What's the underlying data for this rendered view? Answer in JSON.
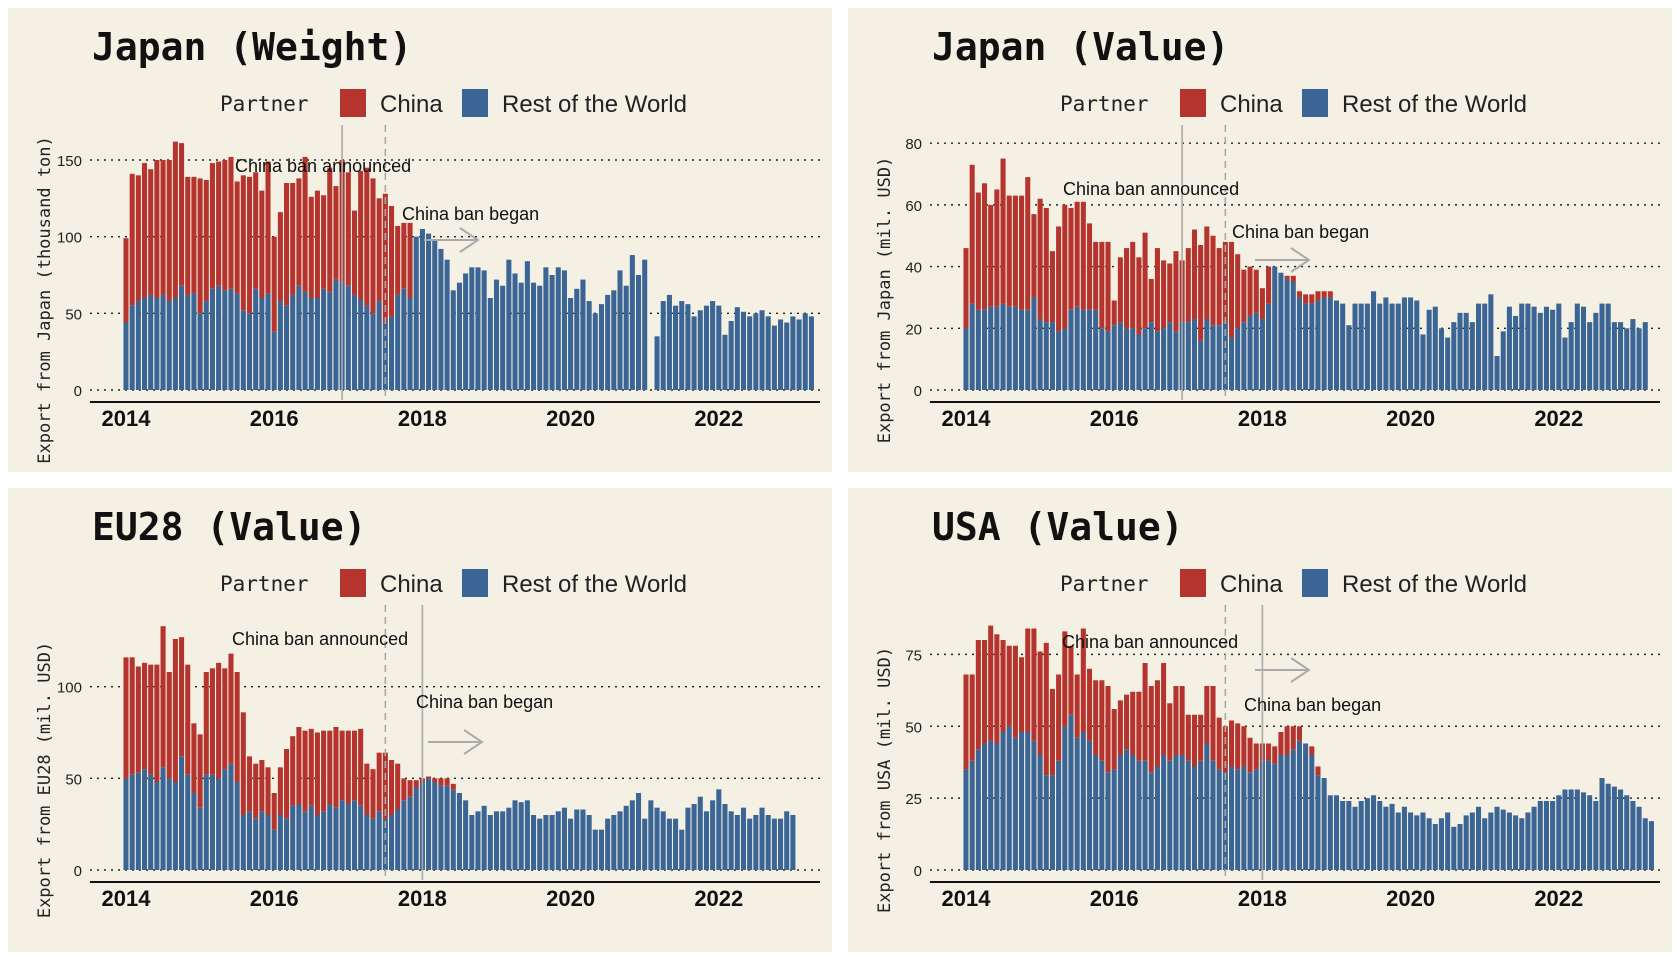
{
  "legend": {
    "title": "Partner",
    "items": [
      {
        "label": "China",
        "color": "#b5352e"
      },
      {
        "label": "Rest of the World",
        "color": "#3a6595"
      }
    ]
  },
  "colors": {
    "panel_background": "#f4f0e4",
    "china": "#b5352e",
    "rest_of_world": "#3a6595",
    "annotation": "#aaaaaa"
  },
  "chart_data": [
    {
      "type": "bar",
      "stacked": true,
      "title": "Japan (Weight)",
      "xlabel": "",
      "ylabel": "Export from Japan (thousand ton)",
      "x_ticks": [
        "2014",
        "2016",
        "2018",
        "2020",
        "2022"
      ],
      "y_ticks": [
        0,
        50,
        100,
        150
      ],
      "ylim": [
        0,
        165
      ],
      "grid": "horizontal-dotted",
      "legend_position": "top",
      "start": "2014-01",
      "annotations": [
        {
          "label": "China ban announced",
          "date": "2016-12",
          "line": "solid"
        },
        {
          "label": "China ban began",
          "date": "2017-07",
          "line": "dashed"
        }
      ],
      "series": [
        {
          "name": "Rest of the World",
          "values": [
            44,
            55,
            58,
            60,
            62,
            60,
            62,
            58,
            60,
            68,
            62,
            63,
            50,
            58,
            66,
            68,
            65,
            66,
            63,
            52,
            50,
            66,
            60,
            63,
            38,
            58,
            55,
            62,
            68,
            64,
            60,
            60,
            66,
            64,
            72,
            70,
            68,
            62,
            59,
            55,
            50,
            58,
            44,
            48,
            62,
            66,
            60,
            100,
            105,
            102,
            98,
            92,
            85,
            65,
            70,
            76,
            80,
            80,
            78,
            60,
            72,
            68,
            85,
            76,
            70,
            84,
            70,
            68,
            80,
            75,
            80,
            78,
            60,
            66,
            72,
            58,
            50,
            56,
            62,
            65,
            78,
            68,
            88,
            75,
            85,
            null,
            35,
            58,
            62,
            55,
            58,
            56,
            48,
            52,
            55,
            58,
            55,
            36,
            45,
            54,
            51,
            48,
            50,
            52,
            48,
            42,
            46,
            44,
            48,
            46,
            50,
            48
          ]
        },
        {
          "name": "China",
          "values": [
            55,
            86,
            82,
            88,
            82,
            90,
            88,
            92,
            102,
            93,
            77,
            76,
            88,
            79,
            82,
            81,
            85,
            86,
            73,
            88,
            89,
            76,
            70,
            86,
            62,
            58,
            80,
            73,
            70,
            88,
            66,
            70,
            61,
            81,
            61,
            80,
            74,
            55,
            84,
            90,
            88,
            67,
            84,
            72,
            45,
            43,
            49,
            0,
            0,
            0,
            0,
            0,
            0,
            0,
            0,
            0,
            0,
            0,
            0,
            0,
            0,
            0,
            0,
            0,
            0,
            0,
            0,
            0,
            0,
            0,
            0,
            0,
            0,
            0,
            0,
            0,
            0,
            0,
            0,
            0,
            0,
            0,
            0,
            0,
            0,
            null,
            0,
            0,
            0,
            0,
            0,
            0,
            0,
            0,
            0,
            0,
            0,
            0,
            0,
            0,
            0,
            0,
            0,
            0,
            0,
            0,
            0,
            0,
            0,
            0,
            0,
            0
          ]
        }
      ]
    },
    {
      "type": "bar",
      "stacked": true,
      "title": "Japan (Value)",
      "xlabel": "",
      "ylabel": "Export from Japan (mil. USD)",
      "x_ticks": [
        "2014",
        "2016",
        "2018",
        "2020",
        "2022"
      ],
      "y_ticks": [
        0,
        20,
        40,
        60,
        80
      ],
      "ylim": [
        0,
        82
      ],
      "grid": "horizontal-dotted",
      "legend_position": "top",
      "start": "2014-01",
      "annotations": [
        {
          "label": "China ban announced",
          "date": "2016-12",
          "line": "solid"
        },
        {
          "label": "China ban began",
          "date": "2017-07",
          "line": "dashed"
        }
      ],
      "series": [
        {
          "name": "Rest of the World",
          "values": [
            20,
            28,
            26,
            26,
            27,
            27,
            28,
            27,
            27,
            26,
            26,
            30,
            23,
            22,
            22,
            19,
            20,
            26,
            27,
            26,
            26,
            26,
            20,
            19,
            21,
            22,
            20,
            20,
            18,
            20,
            22,
            19,
            20,
            22,
            19,
            22,
            22,
            23,
            16,
            23,
            21,
            21,
            22,
            17,
            20,
            22,
            24,
            25,
            23,
            28,
            40,
            38,
            36,
            35,
            30,
            28,
            28,
            29,
            30,
            30,
            29,
            28,
            21,
            28,
            28,
            28,
            32,
            28,
            30,
            28,
            28,
            30,
            30,
            29,
            18,
            26,
            27,
            20,
            17,
            22,
            25,
            25,
            22,
            28,
            28,
            31,
            11,
            19,
            27,
            24,
            28,
            28,
            27,
            25,
            27,
            26,
            28,
            17,
            22,
            28,
            27,
            22,
            25,
            28,
            28,
            22,
            22,
            20,
            23,
            20,
            22
          ]
        },
        {
          "name": "China",
          "values": [
            26,
            45,
            38,
            41,
            33,
            38,
            47,
            36,
            36,
            37,
            43,
            27,
            39,
            37,
            23,
            34,
            40,
            33,
            34,
            35,
            28,
            22,
            28,
            29,
            8,
            21,
            26,
            28,
            25,
            31,
            14,
            27,
            22,
            19,
            26,
            20,
            24,
            29,
            31,
            30,
            29,
            25,
            26,
            31,
            24,
            17,
            16,
            14,
            10,
            12,
            0,
            0,
            1,
            2,
            2,
            3,
            3,
            3,
            2,
            2,
            0,
            0,
            0,
            0,
            0,
            0,
            0,
            0,
            0,
            0,
            0,
            0,
            0,
            0,
            0,
            0,
            0,
            0,
            0,
            0,
            0,
            0,
            0,
            0,
            0,
            0,
            0,
            0,
            0,
            0,
            0,
            0,
            0,
            0,
            0,
            0,
            0,
            0,
            0,
            0,
            0,
            0,
            0,
            0,
            0,
            0,
            0,
            0,
            0,
            0,
            0
          ]
        }
      ]
    },
    {
      "type": "bar",
      "stacked": true,
      "title": "EU28 (Value)",
      "xlabel": "",
      "ylabel": "Export from EU28 (mil. USD)",
      "x_ticks": [
        "2014",
        "2016",
        "2018",
        "2020",
        "2022"
      ],
      "y_ticks": [
        0,
        50,
        100
      ],
      "ylim": [
        0,
        138
      ],
      "grid": "horizontal-dotted",
      "legend_position": "top",
      "start": "2014-01",
      "annotations": [
        {
          "label": "China ban announced",
          "date": "2017-07",
          "line": "dashed"
        },
        {
          "label": "China ban began",
          "date": "2018-01",
          "line": "solid"
        }
      ],
      "series": [
        {
          "name": "Rest of the World",
          "values": [
            50,
            52,
            53,
            55,
            52,
            48,
            56,
            50,
            48,
            62,
            52,
            42,
            34,
            52,
            52,
            50,
            55,
            58,
            48,
            30,
            32,
            28,
            32,
            30,
            22,
            30,
            28,
            35,
            36,
            32,
            35,
            30,
            32,
            36,
            34,
            38,
            36,
            38,
            35,
            30,
            28,
            32,
            28,
            30,
            33,
            38,
            40,
            45,
            48,
            50,
            48,
            46,
            46,
            44,
            42,
            38,
            30,
            32,
            35,
            30,
            32,
            32,
            34,
            38,
            37,
            38,
            30,
            28,
            30,
            30,
            32,
            34,
            28,
            33,
            33,
            30,
            22,
            22,
            28,
            30,
            32,
            35,
            38,
            42,
            28,
            38,
            34,
            32,
            28,
            28,
            22,
            34,
            36,
            40,
            32,
            38,
            44,
            36,
            32,
            30,
            34,
            28,
            30,
            34,
            30,
            28,
            28,
            32,
            30
          ]
        },
        {
          "name": "China",
          "values": [
            66,
            64,
            58,
            58,
            60,
            64,
            77,
            58,
            78,
            65,
            60,
            38,
            40,
            56,
            58,
            63,
            55,
            60,
            60,
            56,
            30,
            30,
            28,
            26,
            20,
            26,
            38,
            38,
            42,
            44,
            42,
            45,
            44,
            40,
            44,
            38,
            40,
            38,
            42,
            28,
            27,
            32,
            36,
            30,
            25,
            12,
            9,
            4,
            2,
            1,
            2,
            4,
            4,
            3,
            0,
            0,
            0,
            0,
            0,
            0,
            0,
            0,
            0,
            0,
            0,
            0,
            0,
            0,
            0,
            0,
            0,
            0,
            0,
            0,
            0,
            0,
            0,
            0,
            0,
            0,
            0,
            0,
            0,
            0,
            0,
            0,
            0,
            0,
            0,
            0,
            0,
            0,
            0,
            0,
            0,
            0,
            0,
            0,
            0,
            0,
            0,
            0,
            0,
            0,
            0,
            0,
            0,
            0,
            0
          ]
        }
      ]
    },
    {
      "type": "bar",
      "stacked": true,
      "title": "USA (Value)",
      "xlabel": "",
      "ylabel": "Export from USA (mil. USD)",
      "x_ticks": [
        "2014",
        "2016",
        "2018",
        "2020",
        "2022"
      ],
      "y_ticks": [
        0,
        25,
        50,
        75
      ],
      "ylim": [
        0,
        88
      ],
      "grid": "horizontal-dotted",
      "legend_position": "top",
      "start": "2014-01",
      "annotations": [
        {
          "label": "China ban announced",
          "date": "2017-07",
          "line": "dashed"
        },
        {
          "label": "China ban began",
          "date": "2018-01",
          "line": "solid"
        }
      ],
      "series": [
        {
          "name": "Rest of the World",
          "values": [
            35,
            38,
            42,
            44,
            45,
            44,
            48,
            50,
            46,
            48,
            48,
            45,
            40,
            33,
            33,
            38,
            50,
            54,
            46,
            48,
            45,
            40,
            38,
            34,
            35,
            40,
            42,
            40,
            38,
            38,
            34,
            36,
            40,
            38,
            40,
            40,
            38,
            36,
            38,
            44,
            38,
            35,
            34,
            36,
            35,
            36,
            34,
            35,
            38,
            38,
            37,
            40,
            40,
            42,
            45,
            44,
            40,
            33,
            32,
            26,
            26,
            24,
            24,
            22,
            24,
            25,
            26,
            24,
            22,
            23,
            20,
            22,
            20,
            19,
            20,
            18,
            16,
            18,
            20,
            15,
            16,
            19,
            20,
            22,
            18,
            20,
            22,
            21,
            20,
            19,
            18,
            20,
            22,
            24,
            24,
            24,
            26,
            28,
            28,
            28,
            27,
            26,
            24,
            32,
            30,
            29,
            28,
            26,
            24,
            22,
            18,
            17
          ]
        },
        {
          "name": "China",
          "values": [
            33,
            30,
            38,
            36,
            40,
            38,
            32,
            28,
            32,
            26,
            36,
            39,
            36,
            46,
            30,
            30,
            33,
            24,
            22,
            36,
            25,
            26,
            28,
            30,
            21,
            19,
            19,
            22,
            24,
            34,
            30,
            30,
            32,
            20,
            24,
            24,
            16,
            18,
            16,
            20,
            26,
            18,
            16,
            16,
            16,
            14,
            12,
            9,
            6,
            6,
            6,
            8,
            10,
            8,
            5,
            0,
            3,
            3,
            0,
            0,
            0,
            0,
            0,
            0,
            0,
            0,
            0,
            0,
            0,
            0,
            0,
            0,
            0,
            0,
            0,
            0,
            0,
            0,
            0,
            0,
            0,
            0,
            0,
            0,
            0,
            0,
            0,
            0,
            0,
            0,
            0,
            0,
            0,
            0,
            0,
            0,
            0,
            0,
            0,
            0,
            0,
            0,
            0,
            0,
            0,
            0,
            0,
            0,
            0,
            0,
            0,
            0
          ]
        }
      ]
    }
  ]
}
